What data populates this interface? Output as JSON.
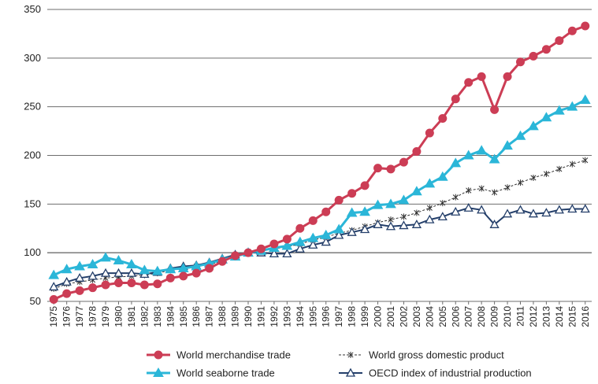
{
  "chart_data": {
    "type": "line",
    "title": "",
    "xlabel": "",
    "ylabel": "",
    "ylim": [
      50,
      350
    ],
    "yticks": [
      50,
      100,
      150,
      200,
      250,
      300,
      350
    ],
    "grid": "horizontal",
    "legend_position": "bottom",
    "categories": [
      "1975",
      "1976",
      "1977",
      "1978",
      "1979",
      "1980",
      "1981",
      "1982",
      "1983",
      "1984",
      "1985",
      "1986",
      "1987",
      "1988",
      "1989",
      "1990",
      "1991",
      "1992",
      "1993",
      "1994",
      "1995",
      "1996",
      "1997",
      "1998",
      "1999",
      "2000",
      "2001",
      "2002",
      "2003",
      "2004",
      "2005",
      "2006",
      "2007",
      "2008",
      "2009",
      "2010",
      "2011",
      "2012",
      "2013",
      "2014",
      "2015",
      "2016"
    ],
    "series": [
      {
        "name": "World merchandise trade",
        "color": "#cc3d55",
        "marker": "circle",
        "values": [
          52,
          58,
          61,
          64,
          67,
          69,
          69,
          67,
          68,
          74,
          76,
          79,
          84,
          91,
          97,
          100,
          104,
          109,
          114,
          125,
          133,
          142,
          154,
          161,
          169,
          187,
          186,
          193,
          204,
          223,
          238,
          258,
          275,
          281,
          247,
          281,
          296,
          302,
          309,
          318,
          328,
          333
        ]
      },
      {
        "name": "World seaborne trade",
        "color": "#2bb6d8",
        "marker": "triangle",
        "values": [
          77,
          83,
          86,
          88,
          95,
          92,
          88,
          82,
          81,
          83,
          84,
          86,
          89,
          93,
          96,
          100,
          102,
          105,
          107,
          111,
          115,
          118,
          124,
          141,
          142,
          149,
          150,
          154,
          163,
          171,
          178,
          192,
          200,
          205,
          196,
          210,
          220,
          230,
          239,
          246,
          250,
          257
        ]
      },
      {
        "name": "World gross domestic product",
        "color": "#333333",
        "marker": "star",
        "values": [
          63,
          68,
          70,
          72,
          74,
          75,
          76,
          77,
          79,
          82,
          84,
          86,
          88,
          91,
          96,
          100,
          102,
          104,
          106,
          109,
          113,
          116,
          120,
          123,
          127,
          131,
          134,
          137,
          141,
          146,
          151,
          157,
          164,
          166,
          162,
          167,
          172,
          177,
          181,
          186,
          191,
          195
        ]
      },
      {
        "name": "OECD index of industrial production",
        "color": "#243f6a",
        "marker": "open-triangle",
        "values": [
          65,
          70,
          74,
          76,
          79,
          79,
          79,
          78,
          80,
          84,
          86,
          87,
          90,
          94,
          98,
          100,
          100,
          99,
          99,
          104,
          108,
          111,
          118,
          121,
          124,
          129,
          127,
          128,
          129,
          134,
          137,
          142,
          146,
          144,
          129,
          140,
          144,
          140,
          141,
          144,
          145,
          145
        ]
      }
    ]
  }
}
